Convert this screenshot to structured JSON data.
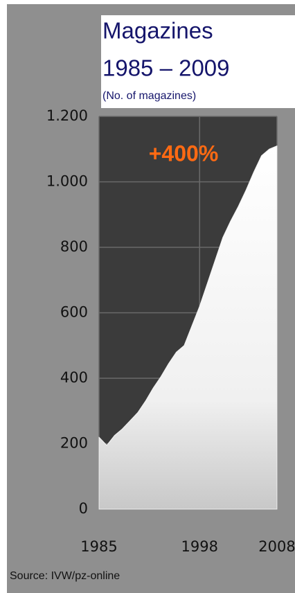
{
  "chart_data": {
    "type": "area",
    "title": "Magazines",
    "subtitle": "1985 – 2009",
    "y_label": "(No. of magazines)",
    "annotation": "+400%",
    "source": "Source: IVW/pz-online",
    "x": [
      1985,
      1986,
      1987,
      1988,
      1989,
      1990,
      1991,
      1992,
      1993,
      1994,
      1995,
      1996,
      1997,
      1998,
      1999,
      2000,
      2001,
      2002,
      2003,
      2004,
      2005,
      2006,
      2007,
      2008
    ],
    "series": [
      {
        "name": "Magazines",
        "color": "#f2f2f2",
        "values": [
          220,
          195,
          225,
          245,
          270,
          295,
          330,
          370,
          405,
          445,
          480,
          500,
          560,
          620,
          690,
          760,
          830,
          880,
          925,
          975,
          1030,
          1080,
          1100,
          1110
        ]
      }
    ],
    "xlim": [
      1985,
      2008
    ],
    "xticks": [
      1985,
      1998,
      2008
    ],
    "ylim": [
      0,
      1200
    ],
    "yticks": [
      0,
      200,
      400,
      600,
      {
        "value": 800,
        "label": "800"
      },
      {
        "value": 1000,
        "label": "1.000"
      },
      {
        "value": 1200,
        "label": "1.200"
      }
    ],
    "grid": true
  }
}
